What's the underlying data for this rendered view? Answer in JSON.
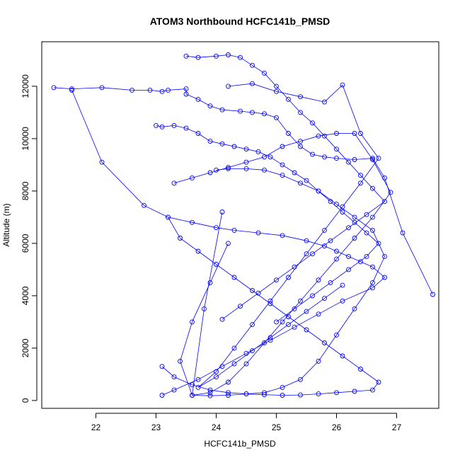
{
  "chart_data": {
    "type": "line",
    "title": "ATOM3 Northbound HCFC141b_PMSD",
    "xlabel": "HCFC141b_PMSD",
    "ylabel": "Altitude (m)",
    "xlim": [
      21.1,
      27.7
    ],
    "ylim": [
      -300,
      13700
    ],
    "x_ticks": [
      "22",
      "23",
      "24",
      "25",
      "26",
      "27"
    ],
    "y_ticks": [
      "0",
      "2000",
      "4000",
      "6000",
      "8000",
      "10000",
      "12000"
    ],
    "grid": false,
    "legend": "none",
    "markers": "open-circles",
    "series_color": "#0000ff",
    "series": [
      {
        "x": [
          21.3,
          21.6,
          22.1,
          22.6,
          22.9,
          23.1,
          23.2,
          23.5,
          23.5,
          23.7,
          23.9,
          24.1,
          24.4,
          24.6,
          24.8,
          25.0,
          25.2,
          25.4,
          25.6,
          25.8,
          26.0,
          26.3,
          26.6,
          26.8,
          27.1,
          27.6
        ],
        "y": [
          11950,
          11900,
          11950,
          11850,
          11850,
          11800,
          11850,
          11900,
          11700,
          11500,
          11250,
          11100,
          11050,
          11000,
          10950,
          10800,
          10200,
          9700,
          9400,
          9300,
          9250,
          9200,
          9250,
          8500,
          6400,
          4050
        ]
      },
      {
        "x": [
          21.6,
          22.1,
          22.8,
          23.2,
          23.6,
          24.0,
          24.3,
          24.7,
          25.1,
          25.5,
          25.8,
          26.0,
          26.2,
          26.4,
          26.6,
          26.8,
          26.6,
          26.1,
          25.7,
          25.3,
          24.9,
          24.5,
          24.1,
          23.7,
          23.3,
          23.1
        ],
        "y": [
          11850,
          9100,
          7450,
          7000,
          6800,
          6600,
          6500,
          6400,
          6300,
          6100,
          5900,
          5700,
          5500,
          5300,
          5100,
          4700,
          4300,
          3800,
          3300,
          2800,
          2300,
          1800,
          1300,
          800,
          400,
          200
        ]
      },
      {
        "x": [
          23.0,
          23.1,
          23.3,
          23.5,
          23.7,
          23.9,
          24.1,
          24.3,
          24.5,
          24.7,
          24.9,
          25.1,
          25.3,
          25.5,
          25.7,
          25.9,
          26.1,
          26.3,
          26.5,
          26.7,
          26.5,
          26.2,
          25.9,
          25.6,
          25.3,
          25.0
        ],
        "y": [
          10500,
          10450,
          10500,
          10400,
          10200,
          9900,
          9800,
          9700,
          9600,
          9500,
          9300,
          9000,
          8700,
          8400,
          8000,
          7600,
          7200,
          6800,
          6400,
          6000,
          5500,
          5000,
          4500,
          4000,
          3500,
          3000
        ]
      },
      {
        "x": [
          23.5,
          23.7,
          24.0,
          24.2,
          24.4,
          24.6,
          24.8,
          25.0,
          25.2,
          25.4,
          25.6,
          25.8,
          26.0,
          26.2,
          26.4,
          26.6,
          26.8,
          26.5,
          26.2,
          25.9,
          25.6,
          25.3,
          25.0,
          24.7,
          24.4,
          24.1
        ],
        "y": [
          13150,
          13100,
          13150,
          13200,
          13100,
          12800,
          12500,
          12000,
          11500,
          11000,
          10600,
          10100,
          9600,
          9100,
          8600,
          8100,
          7600,
          7100,
          6600,
          6100,
          5600,
          5100,
          4600,
          4100,
          3600,
          3100
        ]
      },
      {
        "x": [
          23.1,
          23.3,
          23.6,
          23.9,
          24.2,
          24.5,
          24.8,
          25.1,
          25.4,
          25.7,
          26.0,
          26.3,
          26.6,
          26.7,
          26.4,
          26.1,
          25.8,
          25.5,
          25.2,
          24.9,
          24.6,
          24.3,
          24.0,
          23.7,
          23.4,
          23.2
        ],
        "y": [
          1300,
          900,
          600,
          400,
          300,
          250,
          220,
          200,
          210,
          250,
          300,
          350,
          400,
          700,
          1200,
          1700,
          2200,
          2700,
          3200,
          3700,
          4200,
          4700,
          5200,
          5700,
          6200,
          7000
        ]
      },
      {
        "x": [
          24.0,
          24.2,
          24.5,
          24.8,
          25.1,
          25.4,
          25.7,
          26.0,
          26.3,
          26.6,
          26.8,
          26.6,
          26.3,
          26.0,
          25.7,
          25.4,
          25.1,
          24.8,
          24.5,
          24.2,
          23.9,
          23.6,
          23.4,
          23.6,
          23.9,
          24.2
        ],
        "y": [
          8800,
          8850,
          8850,
          8800,
          8600,
          8300,
          8000,
          7500,
          7000,
          6500,
          5500,
          4500,
          3500,
          2500,
          1500,
          800,
          500,
          300,
          250,
          200,
          180,
          200,
          1500,
          3000,
          4500,
          6000
        ]
      },
      {
        "x": [
          24.2,
          24.6,
          25.0,
          25.4,
          25.8,
          26.1,
          26.4,
          26.7,
          26.4,
          26.1,
          25.8,
          25.5,
          25.2,
          24.9,
          24.6,
          24.3,
          24.0,
          23.7,
          24.0,
          24.3,
          24.6,
          24.9,
          25.2,
          25.5,
          25.8,
          26.1
        ],
        "y": [
          12000,
          12100,
          11800,
          11600,
          11400,
          12050,
          10200,
          9250,
          8300,
          7400,
          6500,
          5600,
          4700,
          3800,
          2900,
          2000,
          1100,
          500,
          900,
          1400,
          1900,
          2400,
          2900,
          3400,
          3900,
          4400
        ]
      },
      {
        "x": [
          23.3,
          23.6,
          23.9,
          24.2,
          24.5,
          24.8,
          25.1,
          25.4,
          25.7,
          26.0,
          26.3,
          26.6,
          26.9,
          26.6,
          26.3,
          26.0,
          25.7,
          25.4,
          25.1,
          24.8,
          24.5,
          24.2,
          23.9,
          23.6,
          23.8,
          24.1
        ],
        "y": [
          8300,
          8500,
          8700,
          8900,
          9100,
          9300,
          9700,
          9900,
          10100,
          10200,
          10200,
          9200,
          7950,
          7000,
          6200,
          5400,
          4600,
          3800,
          3000,
          2200,
          1400,
          700,
          300,
          200,
          3500,
          7200
        ]
      }
    ]
  }
}
